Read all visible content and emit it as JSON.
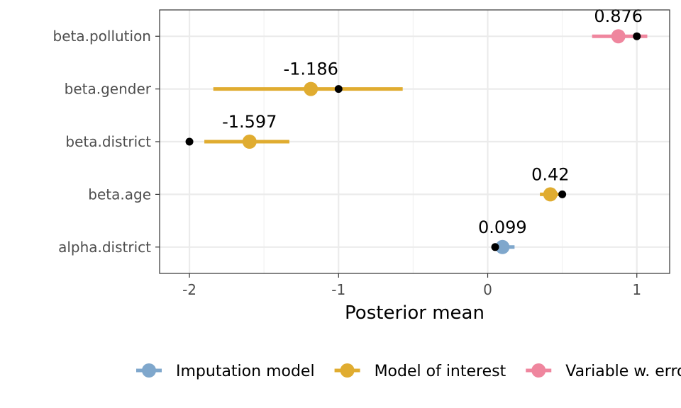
{
  "chart_data": {
    "type": "scatter",
    "xlabel": "Posterior mean",
    "ylabel": "",
    "title": "",
    "xlim": [
      -2.2,
      1.22
    ],
    "x_ticks": [
      -2,
      -1,
      0,
      1
    ],
    "x_tick_labels": [
      "-2",
      "-1",
      "0",
      "1"
    ],
    "categories": [
      "alpha.district",
      "beta.age",
      "beta.district",
      "beta.gender",
      "beta.pollution"
    ],
    "grid": true,
    "legend_position": "bottom",
    "series": [
      {
        "name": "Imputation model",
        "color": "#7fa7cc",
        "points": [
          {
            "category": "alpha.district",
            "mean": 0.099,
            "lower": 0.03,
            "upper": 0.18,
            "label": "0.099"
          }
        ]
      },
      {
        "name": "Model of interest",
        "color": "#e0ac30",
        "points": [
          {
            "category": "beta.age",
            "mean": 0.42,
            "lower": 0.35,
            "upper": 0.5,
            "label": "0.42"
          },
          {
            "category": "beta.district",
            "mean": -1.597,
            "lower": -1.9,
            "upper": -1.33,
            "label": "-1.597"
          },
          {
            "category": "beta.gender",
            "mean": -1.186,
            "lower": -1.84,
            "upper": -0.57,
            "label": "-1.186"
          }
        ]
      },
      {
        "name": "Variable w. error",
        "color": "#ef869e",
        "points": [
          {
            "category": "beta.pollution",
            "mean": 0.876,
            "lower": 0.7,
            "upper": 1.07,
            "label": "0.876"
          }
        ]
      }
    ],
    "true_values": [
      {
        "category": "alpha.district",
        "value": 0.05
      },
      {
        "category": "beta.age",
        "value": 0.5
      },
      {
        "category": "beta.district",
        "value": -2.0
      },
      {
        "category": "beta.gender",
        "value": -1.0
      },
      {
        "category": "beta.pollution",
        "value": 1.0
      }
    ],
    "legend": [
      {
        "label": "Imputation model",
        "color": "#7fa7cc"
      },
      {
        "label": "Model of interest",
        "color": "#e0ac30"
      },
      {
        "label": "Variable w. error",
        "color": "#ef869e"
      }
    ]
  }
}
